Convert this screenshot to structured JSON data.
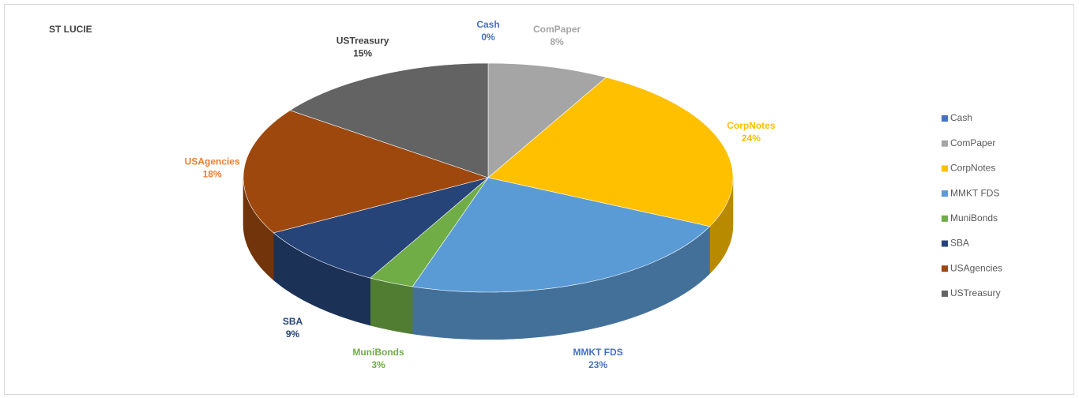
{
  "chart_data": {
    "type": "pie3d",
    "title": "ST LUCIE",
    "categories": [
      "Cash",
      "ComPaper",
      "CorpNotes",
      "MMKT FDS",
      "MuniBonds",
      "SBA",
      "USAgencies",
      "USTreasury"
    ],
    "values": [
      0,
      8,
      24,
      23,
      3,
      9,
      18,
      15
    ],
    "value_labels": [
      "0%",
      "8%",
      "24%",
      "23%",
      "3%",
      "9%",
      "18%",
      "15%"
    ],
    "colors": [
      "#4472c4",
      "#a5a5a5",
      "#ffc000",
      "#5b9bd5",
      "#70ad47",
      "#264478",
      "#9e480e",
      "#636363"
    ],
    "label_colors": [
      "#4472c4",
      "#a5a5a5",
      "#ffc000",
      "#4472c4",
      "#70ad47",
      "#264478",
      "#ed7d31",
      "#404040"
    ],
    "legend": "right"
  }
}
